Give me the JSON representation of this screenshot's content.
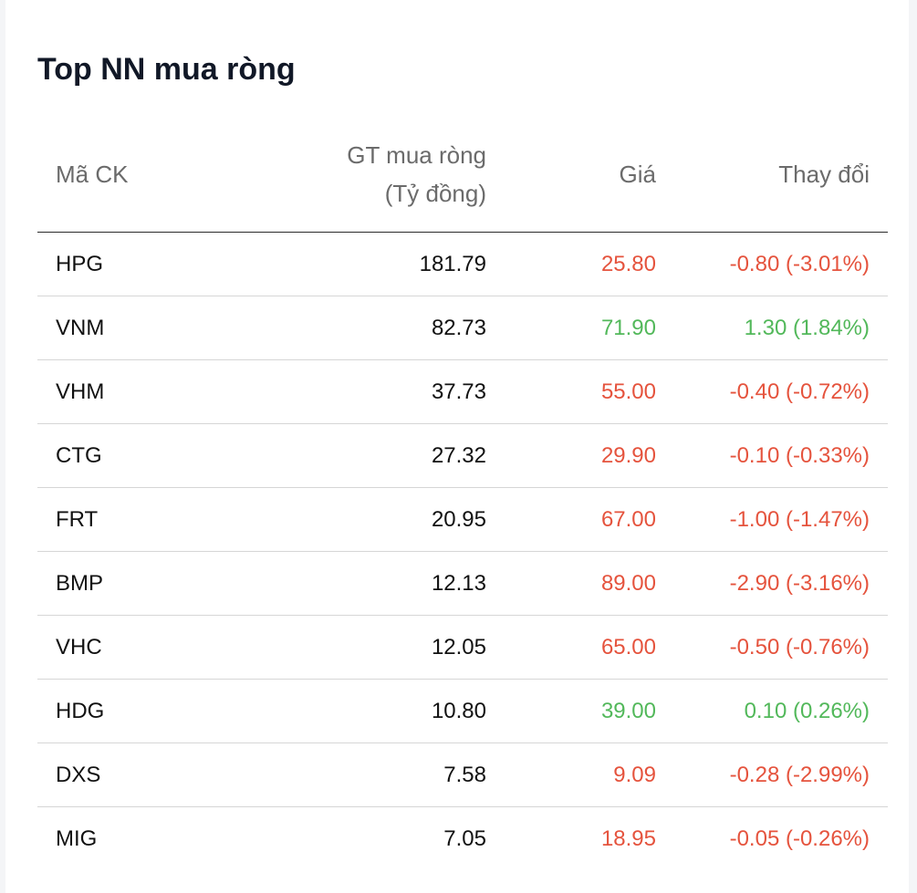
{
  "widget": {
    "title": "Top NN mua ròng"
  },
  "table": {
    "headers": {
      "code": "Mã CK",
      "value_line1": "GT mua ròng",
      "value_line2": "(Tỷ đồng)",
      "price": "Giá",
      "change": "Thay đổi"
    },
    "rows": [
      {
        "code": "HPG",
        "value": "181.79",
        "price": "25.80",
        "change": "-0.80 (-3.01%)",
        "direction": "down"
      },
      {
        "code": "VNM",
        "value": "82.73",
        "price": "71.90",
        "change": "1.30 (1.84%)",
        "direction": "up"
      },
      {
        "code": "VHM",
        "value": "37.73",
        "price": "55.00",
        "change": "-0.40 (-0.72%)",
        "direction": "down"
      },
      {
        "code": "CTG",
        "value": "27.32",
        "price": "29.90",
        "change": "-0.10 (-0.33%)",
        "direction": "down"
      },
      {
        "code": "FRT",
        "value": "20.95",
        "price": "67.00",
        "change": "-1.00 (-1.47%)",
        "direction": "down"
      },
      {
        "code": "BMP",
        "value": "12.13",
        "price": "89.00",
        "change": "-2.90 (-3.16%)",
        "direction": "down"
      },
      {
        "code": "VHC",
        "value": "12.05",
        "price": "65.00",
        "change": "-0.50 (-0.76%)",
        "direction": "down"
      },
      {
        "code": "HDG",
        "value": "10.80",
        "price": "39.00",
        "change": "0.10 (0.26%)",
        "direction": "up"
      },
      {
        "code": "DXS",
        "value": "7.58",
        "price": "9.09",
        "change": "-0.28 (-2.99%)",
        "direction": "down"
      },
      {
        "code": "MIG",
        "value": "7.05",
        "price": "18.95",
        "change": "-0.05 (-0.26%)",
        "direction": "down"
      }
    ]
  },
  "colors": {
    "down": "#e5533d",
    "up": "#52b85a",
    "text": "#111111",
    "header_text": "#6b6b6b"
  }
}
